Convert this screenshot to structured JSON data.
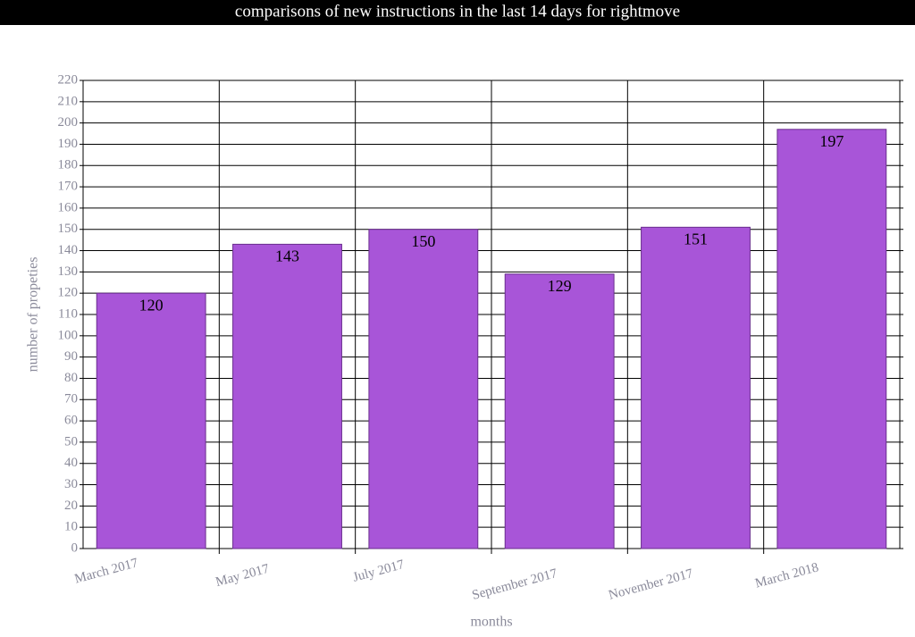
{
  "chart_data": {
    "type": "bar",
    "title": "comparisons of new instructions in the last 14 days for rightmove",
    "x_label": "months",
    "y_label": "number of propeties",
    "categories": [
      "March 2017",
      "May 2017",
      "July 2017",
      "September 2017",
      "November 2017",
      "March 2018"
    ],
    "values": [
      120,
      143,
      150,
      129,
      151,
      197
    ],
    "color": "#a855d8",
    "ylim": [
      0,
      220
    ],
    "yticks": [
      0,
      10,
      20,
      30,
      40,
      50,
      60,
      70,
      80,
      90,
      100,
      110,
      120,
      130,
      140,
      150,
      160,
      170,
      180,
      190,
      200,
      210,
      220
    ],
    "grid": true
  }
}
